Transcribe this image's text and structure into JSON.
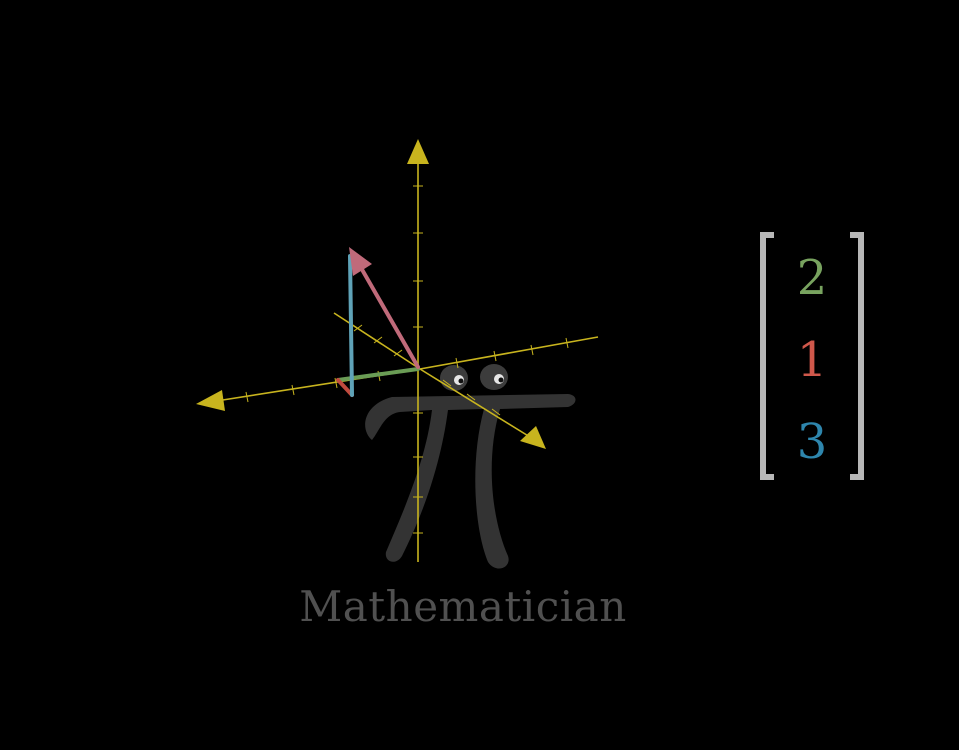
{
  "caption": "Mathematician",
  "vector": {
    "entries": [
      {
        "value": "2",
        "color": "#78a35f"
      },
      {
        "value": "1",
        "color": "#d0584b"
      },
      {
        "value": "3",
        "color": "#2e86ad"
      }
    ]
  },
  "colors": {
    "axes": "#c8b41e",
    "resultant_vector": "#c06a7a",
    "x_component": "#6a9c55",
    "y_component": "#c04a3e",
    "z_component": "#5fa3b8",
    "bracket": "#b7b7b7",
    "pi_creature": "#333333"
  },
  "icons": [
    "pi-creature-icon"
  ]
}
